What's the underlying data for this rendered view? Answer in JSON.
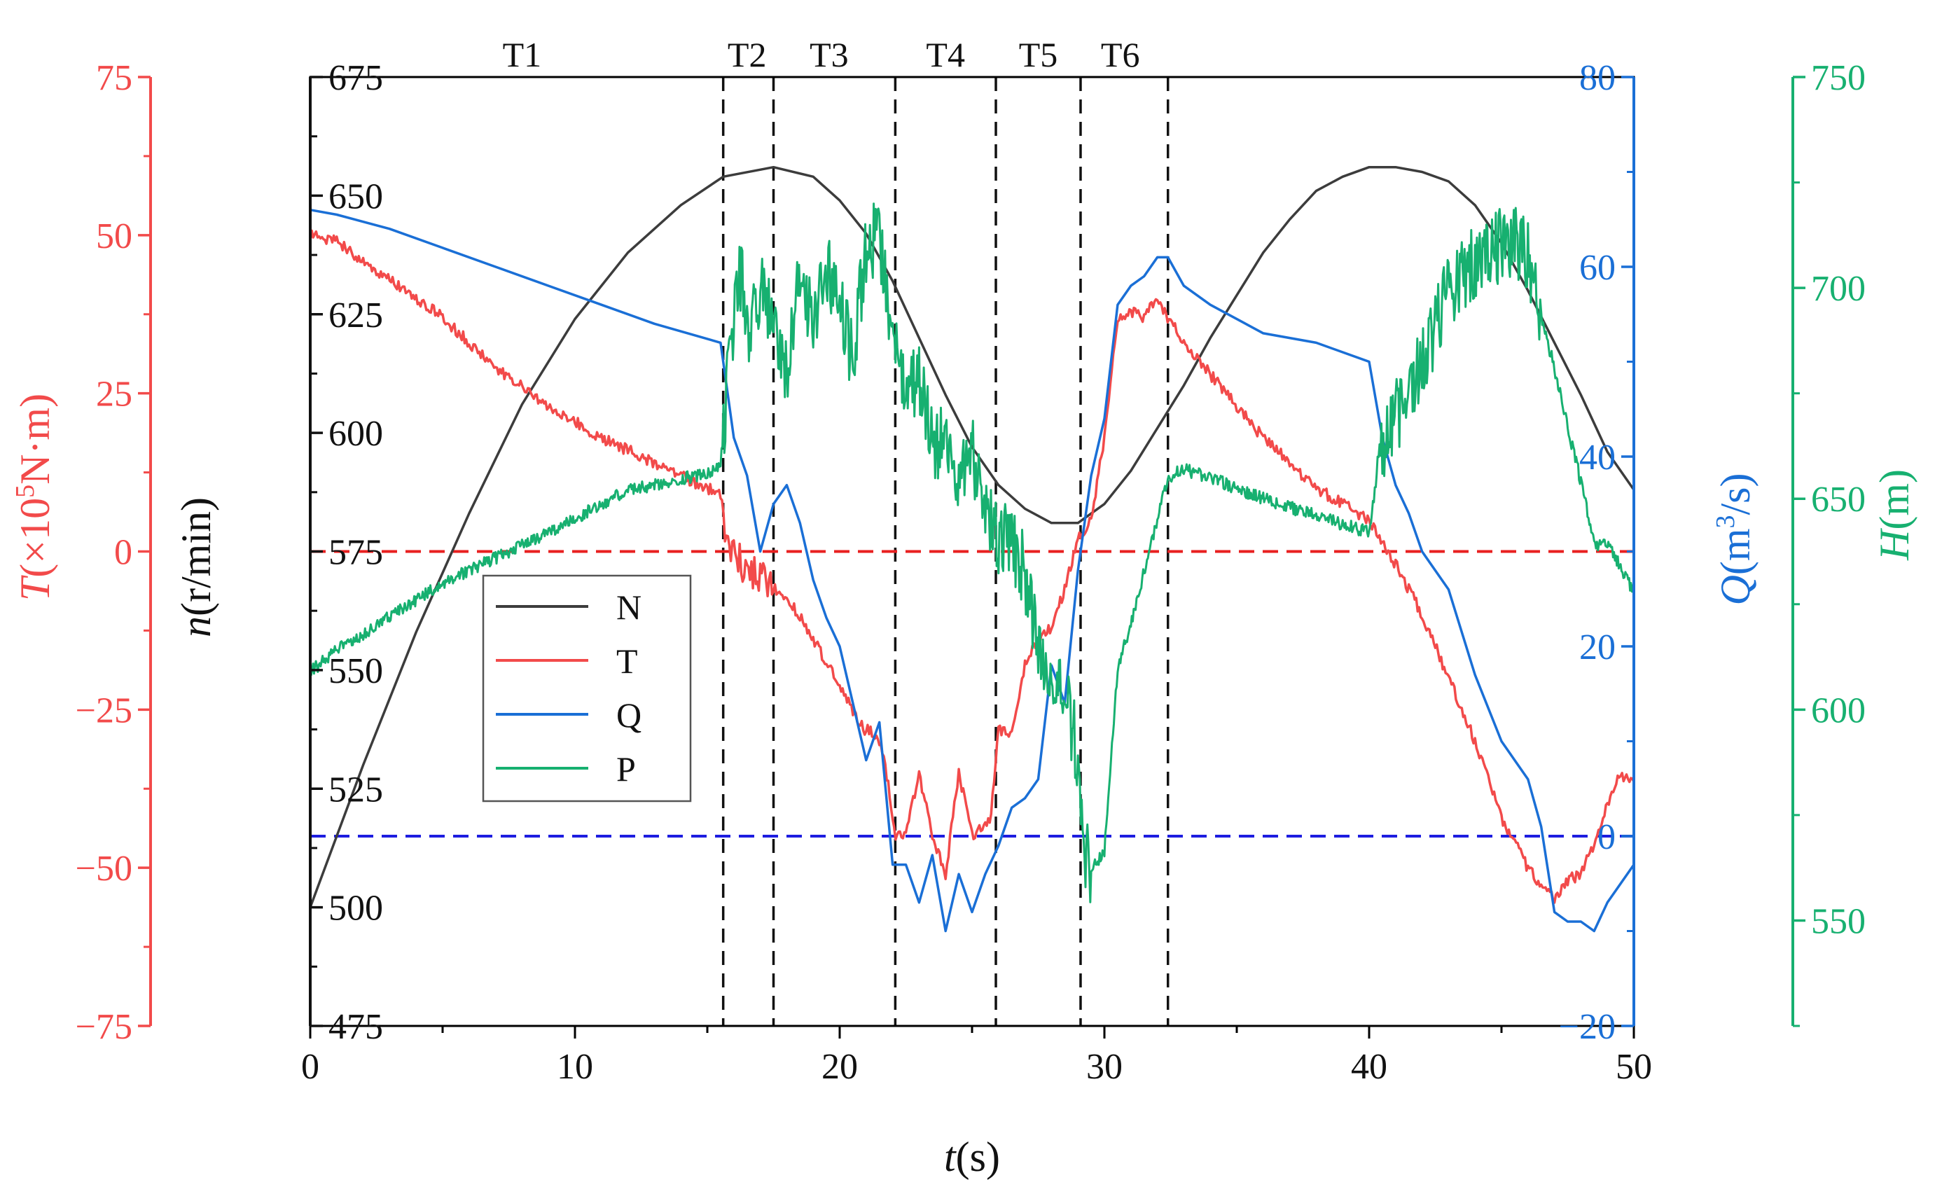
{
  "chart_data": {
    "type": "line",
    "title": "",
    "xlabel": "t(s)",
    "x_axis": {
      "label_italic": "t",
      "label_unit": "(s)",
      "range": [
        0,
        50
      ],
      "ticks": [
        0,
        10,
        20,
        30,
        40,
        50
      ],
      "tick_labels": [
        "0",
        "10",
        "20",
        "30",
        "40",
        "50"
      ]
    },
    "axes": {
      "T": {
        "side": "left-outer",
        "label": "T(×10⁵N·m)",
        "label_italic": "T",
        "label_unit": "(×10",
        "label_sup": "5",
        "label_tail": "N·m)",
        "range": [
          -75,
          75
        ],
        "ticks": [
          -75,
          -50,
          -25,
          0,
          25,
          50,
          75
        ],
        "tick_labels": [
          "−75",
          "−50",
          "−25",
          "0",
          "25",
          "50",
          "75"
        ],
        "color": "#f24a4a"
      },
      "n": {
        "side": "left-inner",
        "label": "n(r/min)",
        "label_italic": "n",
        "label_unit": "(r/min)",
        "range": [
          475,
          675
        ],
        "ticks": [
          475,
          500,
          525,
          550,
          575,
          600,
          625,
          650,
          675
        ],
        "tick_labels": [
          "475",
          "500",
          "525",
          "550",
          "575",
          "600",
          "625",
          "650",
          "675"
        ],
        "color": "#111111"
      },
      "Q": {
        "side": "right-inner",
        "label": "Q(m³/s)",
        "label_italic": "Q",
        "label_unit": "(m",
        "label_sup": "3",
        "label_tail": "/s)",
        "range": [
          -20,
          80
        ],
        "ticks": [
          -20,
          0,
          20,
          40,
          60,
          80
        ],
        "tick_labels": [
          "−20",
          "0",
          "20",
          "40",
          "60",
          "80"
        ],
        "color": "#1a6fd6"
      },
      "H": {
        "side": "right-outer",
        "label": "H(m)",
        "label_italic": "H",
        "label_unit": "(m)",
        "range": [
          525,
          750
        ],
        "ticks": [
          550,
          600,
          650,
          700,
          750
        ],
        "tick_labels": [
          "550",
          "600",
          "650",
          "700",
          "750"
        ],
        "color": "#17b070"
      }
    },
    "stages": {
      "boundaries": [
        15.6,
        17.5,
        22.1,
        25.9,
        29.1,
        32.4
      ],
      "labels": [
        {
          "text": "T1",
          "x": 8.0
        },
        {
          "text": "T2",
          "x": 16.5
        },
        {
          "text": "T3",
          "x": 19.6
        },
        {
          "text": "T4",
          "x": 24.0
        },
        {
          "text": "T5",
          "x": 27.5
        },
        {
          "text": "T6",
          "x": 30.6
        }
      ]
    },
    "reference_lines": [
      {
        "axis": "T",
        "value": 0,
        "color": "#e82020"
      },
      {
        "axis": "Q",
        "value": 0,
        "color": "#1d1de0"
      }
    ],
    "legend": {
      "placement": "mid-left",
      "entries": [
        "N",
        "T",
        "Q",
        "P"
      ]
    },
    "series": [
      {
        "name": "N",
        "axis": "n",
        "color": "#3c3c3c",
        "noise": 0,
        "x": [
          0,
          2,
          4,
          6,
          8,
          10,
          12,
          14,
          15.6,
          17.5,
          19,
          20,
          21,
          22,
          23,
          24,
          25,
          26,
          27,
          28,
          29,
          30,
          31,
          32,
          33,
          34,
          35,
          36,
          37,
          38,
          39,
          40,
          41,
          42,
          43,
          44,
          45,
          46,
          47,
          48,
          49,
          50
        ],
        "values": [
          500,
          530,
          558,
          583,
          606,
          624,
          638,
          648,
          654,
          656,
          654,
          649,
          642,
          632,
          620,
          608,
          597,
          589,
          584,
          581,
          581,
          585,
          592,
          601,
          610,
          620,
          629,
          638,
          645,
          651,
          654,
          656,
          656,
          655,
          653,
          648,
          640,
          630,
          619,
          608,
          596,
          588
        ]
      },
      {
        "name": "T",
        "axis": "T",
        "color": "#f24a4a",
        "noise": 0.9,
        "x": [
          0,
          1,
          3,
          5,
          7,
          9,
          11,
          13,
          15.5,
          15.7,
          16.3,
          17,
          17.6,
          18.5,
          19.3,
          20.2,
          20.9,
          21.4,
          21.7,
          22.1,
          22.5,
          23,
          23.5,
          24,
          24.5,
          25,
          25.3,
          25.7,
          26,
          26.5,
          27,
          27.5,
          28,
          28.5,
          29,
          29.5,
          30,
          30.5,
          31,
          31.5,
          32,
          32.4,
          33,
          34,
          36,
          38,
          40,
          41,
          42,
          43,
          44,
          45,
          46,
          46.5,
          47,
          47.5,
          48,
          48.5,
          49,
          49.5,
          50
        ],
        "values": [
          50,
          49,
          43,
          37,
          29,
          23,
          18,
          14,
          9,
          2,
          -2,
          -4,
          -6,
          -10,
          -16,
          -23,
          -28,
          -29,
          -33,
          -45,
          -45,
          -35,
          -45,
          -51,
          -35,
          -45,
          -44,
          -42,
          -28,
          -29,
          -18,
          -14,
          -12,
          -6,
          2,
          5,
          18,
          37,
          38,
          37,
          40,
          37,
          33,
          28,
          18,
          10,
          5,
          -2,
          -10,
          -20,
          -30,
          -42,
          -50,
          -53,
          -55,
          -52,
          -51,
          -46,
          -40,
          -35,
          -37
        ]
      },
      {
        "name": "Q",
        "axis": "Q",
        "color": "#1a6fd6",
        "noise": 0,
        "x": [
          0,
          1,
          3,
          5,
          7,
          9,
          11,
          13,
          15.5,
          15.7,
          16,
          16.5,
          17,
          17.5,
          18,
          18.5,
          19,
          19.5,
          20,
          20.5,
          21,
          21.5,
          22,
          22.5,
          23,
          23.5,
          24,
          24.5,
          25,
          25.5,
          26,
          26.5,
          27,
          27.5,
          28,
          28.5,
          29,
          29.5,
          30,
          30.5,
          31,
          31.5,
          32,
          32.4,
          33,
          34,
          36,
          38,
          40,
          40.5,
          41,
          41.5,
          42,
          43,
          44,
          45,
          46,
          46.5,
          47,
          47.5,
          48,
          48.5,
          49,
          49.5,
          50
        ],
        "values": [
          66,
          65.5,
          64,
          62,
          60,
          58,
          56,
          54,
          52,
          48,
          42,
          38,
          30,
          35,
          37,
          33,
          27,
          23,
          20,
          14,
          8,
          12,
          -3,
          -3,
          -7,
          -2,
          -10,
          -4,
          -8,
          -4,
          -1,
          3,
          4,
          6,
          18,
          14,
          28,
          38,
          44,
          56,
          58,
          59,
          61,
          61,
          58,
          56,
          53,
          52,
          50,
          42,
          37,
          34,
          30,
          26,
          17,
          10,
          6,
          1,
          -8,
          -9,
          -9,
          -10,
          -7,
          -5,
          -3
        ]
      },
      {
        "name": "P",
        "axis": "H",
        "color": "#17b070",
        "noise": 1.5,
        "x": [
          0,
          1,
          3,
          5,
          7,
          9,
          10.5,
          12,
          13.5,
          15,
          15.5,
          15.8,
          16.2,
          16.6,
          17,
          17.5,
          18,
          18.5,
          19,
          19.5,
          20,
          20.5,
          21,
          21.5,
          22,
          22.5,
          23,
          23.5,
          24,
          24.5,
          25,
          25.5,
          26,
          26.5,
          27,
          27.5,
          28,
          28.5,
          29,
          29.2,
          29.5,
          30,
          30.5,
          31,
          31.5,
          32,
          32.4,
          33,
          34,
          36,
          38,
          40,
          40.4,
          40.8,
          41.3,
          42,
          42.5,
          43,
          43.5,
          44,
          44.5,
          45,
          45.5,
          46,
          46.5,
          47,
          47.5,
          48,
          48.5,
          49,
          49.5,
          50
        ],
        "values": [
          609,
          614,
          622,
          630,
          636,
          642,
          647,
          652,
          654,
          656,
          658,
          680,
          705,
          688,
          700,
          690,
          680,
          705,
          690,
          704,
          698,
          682,
          710,
          712,
          690,
          675,
          680,
          662,
          666,
          652,
          661,
          648,
          641,
          640,
          632,
          617,
          608,
          604,
          589,
          567,
          562,
          566,
          610,
          620,
          633,
          645,
          655,
          657,
          655,
          650,
          646,
          642,
          660,
          668,
          672,
          682,
          690,
          700,
          702,
          706,
          708,
          710,
          712,
          707,
          693,
          681,
          667,
          654,
          639,
          639,
          634,
          628
        ]
      }
    ]
  }
}
